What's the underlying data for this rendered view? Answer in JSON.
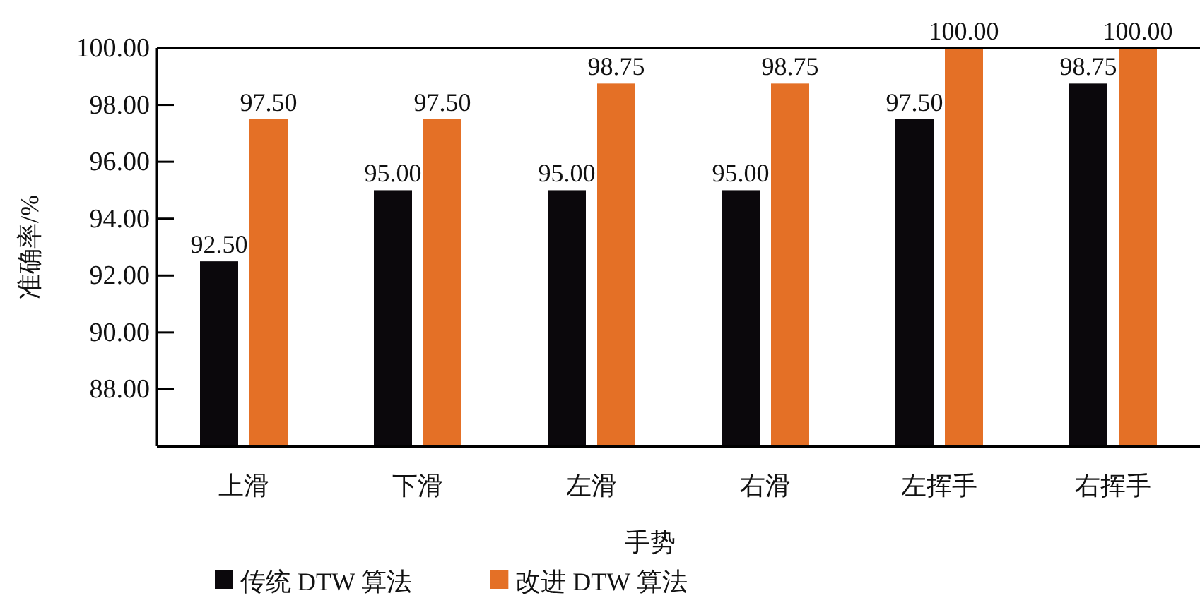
{
  "chart_data": {
    "type": "bar",
    "xlabel": "手势",
    "ylabel": "准确率/%",
    "categories": [
      "上滑",
      "下滑",
      "左滑",
      "右滑",
      "左挥手",
      "右挥手"
    ],
    "series": [
      {
        "name": "传统 DTW 算法",
        "color": "#0b080c",
        "values": [
          92.5,
          95.0,
          95.0,
          95.0,
          97.5,
          98.75
        ],
        "value_labels": [
          "92.50",
          "95.00",
          "95.00",
          "95.00",
          "97.50",
          "98.75"
        ]
      },
      {
        "name": "改进 DTW 算法",
        "color": "#e47026",
        "values": [
          97.5,
          97.5,
          98.75,
          98.75,
          100.0,
          100.0
        ],
        "value_labels": [
          "97.50",
          "97.50",
          "98.75",
          "98.75",
          "100.00",
          "100.00"
        ]
      }
    ],
    "ylim": [
      86,
      100
    ],
    "yticks": [
      {
        "value": 88,
        "label": "88.00"
      },
      {
        "value": 90,
        "label": "90.00"
      },
      {
        "value": 92,
        "label": "92.00"
      },
      {
        "value": 94,
        "label": "94.00"
      },
      {
        "value": 96,
        "label": "96.00"
      },
      {
        "value": 98,
        "label": "98.00"
      },
      {
        "value": 100,
        "label": "100.00"
      }
    ],
    "legend": "bottom",
    "grid": false
  }
}
